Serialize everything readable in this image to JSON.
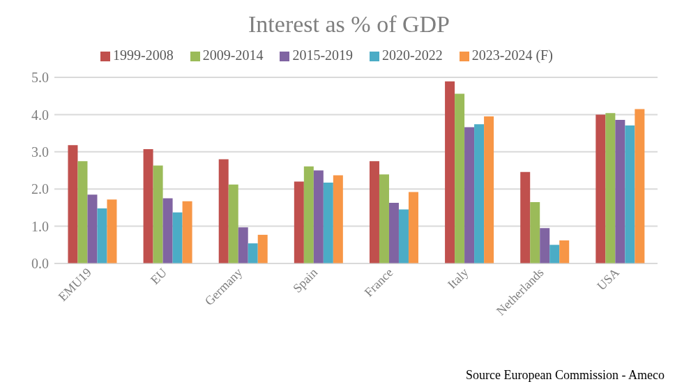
{
  "chart_data": {
    "type": "bar",
    "title": "Interest as % of GDP",
    "categories": [
      "EMU19",
      "EU",
      "Germany",
      "Spain",
      "France",
      "Italy",
      "Netherlands",
      "USA"
    ],
    "series": [
      {
        "name": "1999-2008",
        "color": "#c0504d",
        "values": [
          3.18,
          3.07,
          2.8,
          2.2,
          2.75,
          4.89,
          2.46,
          4.0
        ]
      },
      {
        "name": "2009-2014",
        "color": "#9bbb59",
        "values": [
          2.75,
          2.63,
          2.12,
          2.61,
          2.39,
          4.56,
          1.65,
          4.04
        ]
      },
      {
        "name": "2015-2019",
        "color": "#8064a2",
        "values": [
          1.85,
          1.75,
          0.97,
          2.5,
          1.63,
          3.66,
          0.95,
          3.86
        ]
      },
      {
        "name": "2020-2022",
        "color": "#4bacc6",
        "values": [
          1.48,
          1.37,
          0.54,
          2.17,
          1.45,
          3.74,
          0.5,
          3.71
        ]
      },
      {
        "name": "2023-2024 (F)",
        "color": "#f79646",
        "values": [
          1.72,
          1.67,
          0.77,
          2.37,
          1.92,
          3.95,
          0.62,
          4.15
        ]
      }
    ],
    "ylim": [
      0,
      5
    ],
    "yticks": [
      {
        "value": 0,
        "label": "0.0"
      },
      {
        "value": 1,
        "label": "1.0"
      },
      {
        "value": 2,
        "label": "2.0"
      },
      {
        "value": 3,
        "label": "3.0"
      },
      {
        "value": 4,
        "label": "4.0"
      },
      {
        "value": 5,
        "label": "5.0"
      }
    ],
    "grid": "y",
    "legend": "top",
    "annotations": [
      "Source European Commission - Ameco"
    ]
  }
}
